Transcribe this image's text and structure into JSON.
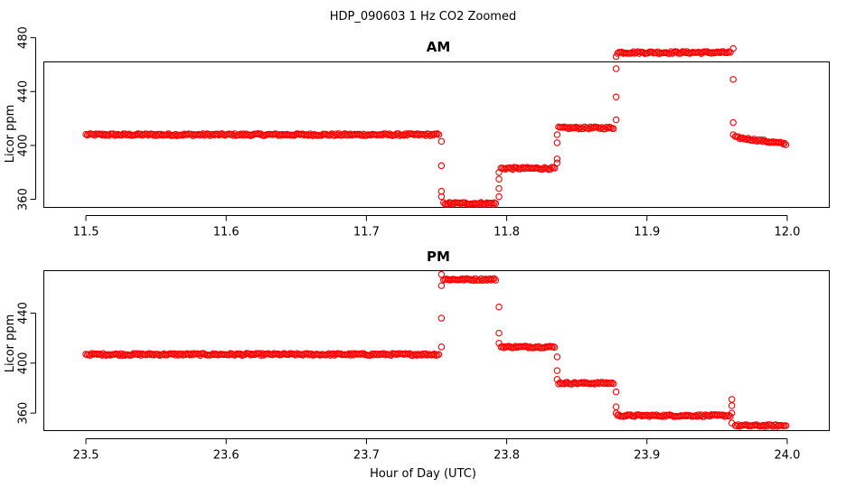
{
  "chart_data": {
    "title": "HDP_090603  1 Hz CO2 Zoomed",
    "xlabel": "Hour of Day (UTC)",
    "point_color": "#ff0000",
    "panels": [
      {
        "type": "scatter",
        "title": "AM",
        "ylabel": "Licor ppm",
        "xlim": [
          11.47,
          12.03
        ],
        "ylim": [
          354,
          462
        ],
        "x_ticks": [
          11.5,
          11.6,
          11.7,
          11.8,
          11.9,
          12.0
        ],
        "x_tick_labels": [
          "11.5",
          "11.6",
          "11.7",
          "11.8",
          "11.9",
          "12.0"
        ],
        "y_ticks": [
          360,
          400,
          440,
          480
        ],
        "y_tick_labels": [
          "360",
          "400",
          "440",
          "480"
        ],
        "segments": [
          {
            "x_start": 11.5,
            "x_end": 11.752,
            "y": 408
          },
          {
            "x_start": 11.755,
            "x_end": 11.793,
            "y": 357
          },
          {
            "x_start": 11.796,
            "x_end": 11.835,
            "y": 383
          },
          {
            "x_start": 11.837,
            "x_end": 11.877,
            "y": 413
          },
          {
            "x_start": 11.879,
            "x_end": 11.96,
            "y": 469
          },
          {
            "x_start": 11.963,
            "x_end": 12.0,
            "y_start": 406,
            "y_end": 401
          }
        ],
        "transitions": [
          {
            "x": 11.7535,
            "y": [
              403,
              385,
              366,
              362
            ]
          },
          {
            "x": 11.7945,
            "y": [
              362,
              368,
              375,
              380
            ]
          },
          {
            "x": 11.836,
            "y": [
              387,
              390,
              402,
              408
            ]
          },
          {
            "x": 11.878,
            "y": [
              419,
              436,
              457,
              466
            ]
          },
          {
            "x": 11.9615,
            "y": [
              472,
              449,
              417,
              408
            ]
          }
        ]
      },
      {
        "type": "scatter",
        "title": "PM",
        "ylabel": "Licor ppm",
        "xlim": [
          23.47,
          24.03
        ],
        "ylim": [
          346,
          474
        ],
        "x_ticks": [
          23.5,
          23.6,
          23.7,
          23.8,
          23.9,
          24.0
        ],
        "x_tick_labels": [
          "23.5",
          "23.6",
          "23.7",
          "23.8",
          "23.9",
          "24.0"
        ],
        "y_ticks": [
          360,
          400,
          440
        ],
        "y_tick_labels": [
          "360",
          "400",
          "440"
        ],
        "segments": [
          {
            "x_start": 23.5,
            "x_end": 23.752,
            "y": 407
          },
          {
            "x_start": 23.755,
            "x_end": 23.793,
            "y": 467
          },
          {
            "x_start": 23.796,
            "x_end": 23.835,
            "y": 413
          },
          {
            "x_start": 23.837,
            "x_end": 23.877,
            "y": 384
          },
          {
            "x_start": 23.879,
            "x_end": 23.96,
            "y": 358
          },
          {
            "x_start": 23.963,
            "x_end": 24.0,
            "y": 350
          }
        ],
        "transitions": [
          {
            "x": 23.7535,
            "y": [
              413,
              436,
              462,
              471
            ]
          },
          {
            "x": 23.7945,
            "y": [
              445,
              424,
              416
            ]
          },
          {
            "x": 23.836,
            "y": [
              405,
              394,
              387
            ]
          },
          {
            "x": 23.878,
            "y": [
              377,
              365,
              360
            ]
          },
          {
            "x": 23.9605,
            "y": [
              371,
              366,
              360,
              352
            ]
          }
        ]
      }
    ]
  }
}
